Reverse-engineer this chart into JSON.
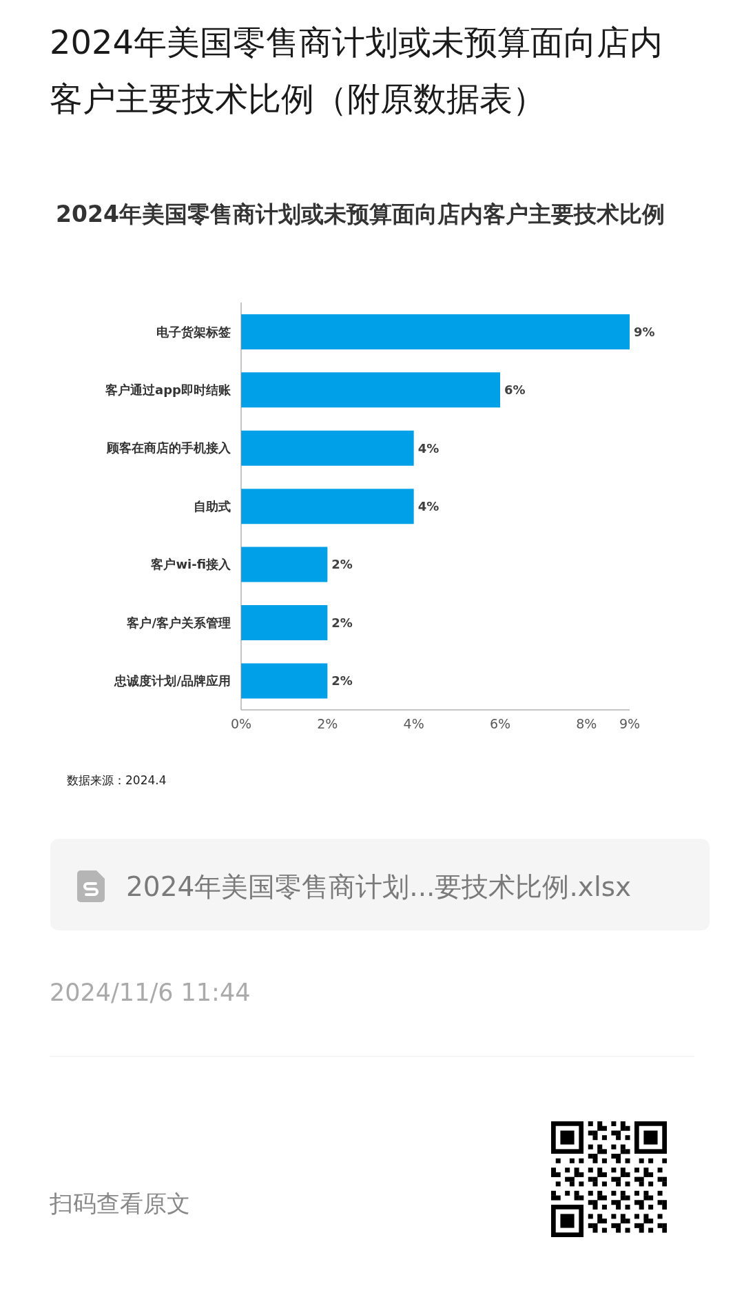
{
  "chart_data": {
    "type": "bar",
    "orientation": "horizontal",
    "title": "2024年美国零售商计划或未预算面向店内客户主要技术比例（附原数据表）",
    "subtitle": "2024年美国零售商计划或未预算面向店内客户主要技术比例",
    "categories": [
      "电子货架标签",
      "客户通过app即时结账",
      "顾客在商店的手机接入",
      "自助式",
      "客户wi-fi接入",
      "客户/客户关系管理",
      "忠诚度计划/品牌应用"
    ],
    "values": [
      9,
      6,
      4,
      4,
      2,
      2,
      2
    ],
    "value_labels": [
      "9%",
      "6%",
      "4%",
      "4%",
      "2%",
      "2%",
      "2%"
    ],
    "color": "#00a0e9",
    "xlim": [
      0,
      9
    ],
    "xticks": [
      {
        "value": 0,
        "label": "0%"
      },
      {
        "value": 2,
        "label": "2%"
      },
      {
        "value": 4,
        "label": "4%"
      },
      {
        "value": 6,
        "label": "6%"
      },
      {
        "value": 8,
        "label": "8%"
      },
      {
        "value": 9,
        "label": "9%"
      }
    ],
    "annotations": [
      "数据来源：2024.4",
      "2024年美国零售商计划...要技术比例.xlsx",
      "2024/11/6 11:44",
      "扫码查看原文"
    ]
  }
}
